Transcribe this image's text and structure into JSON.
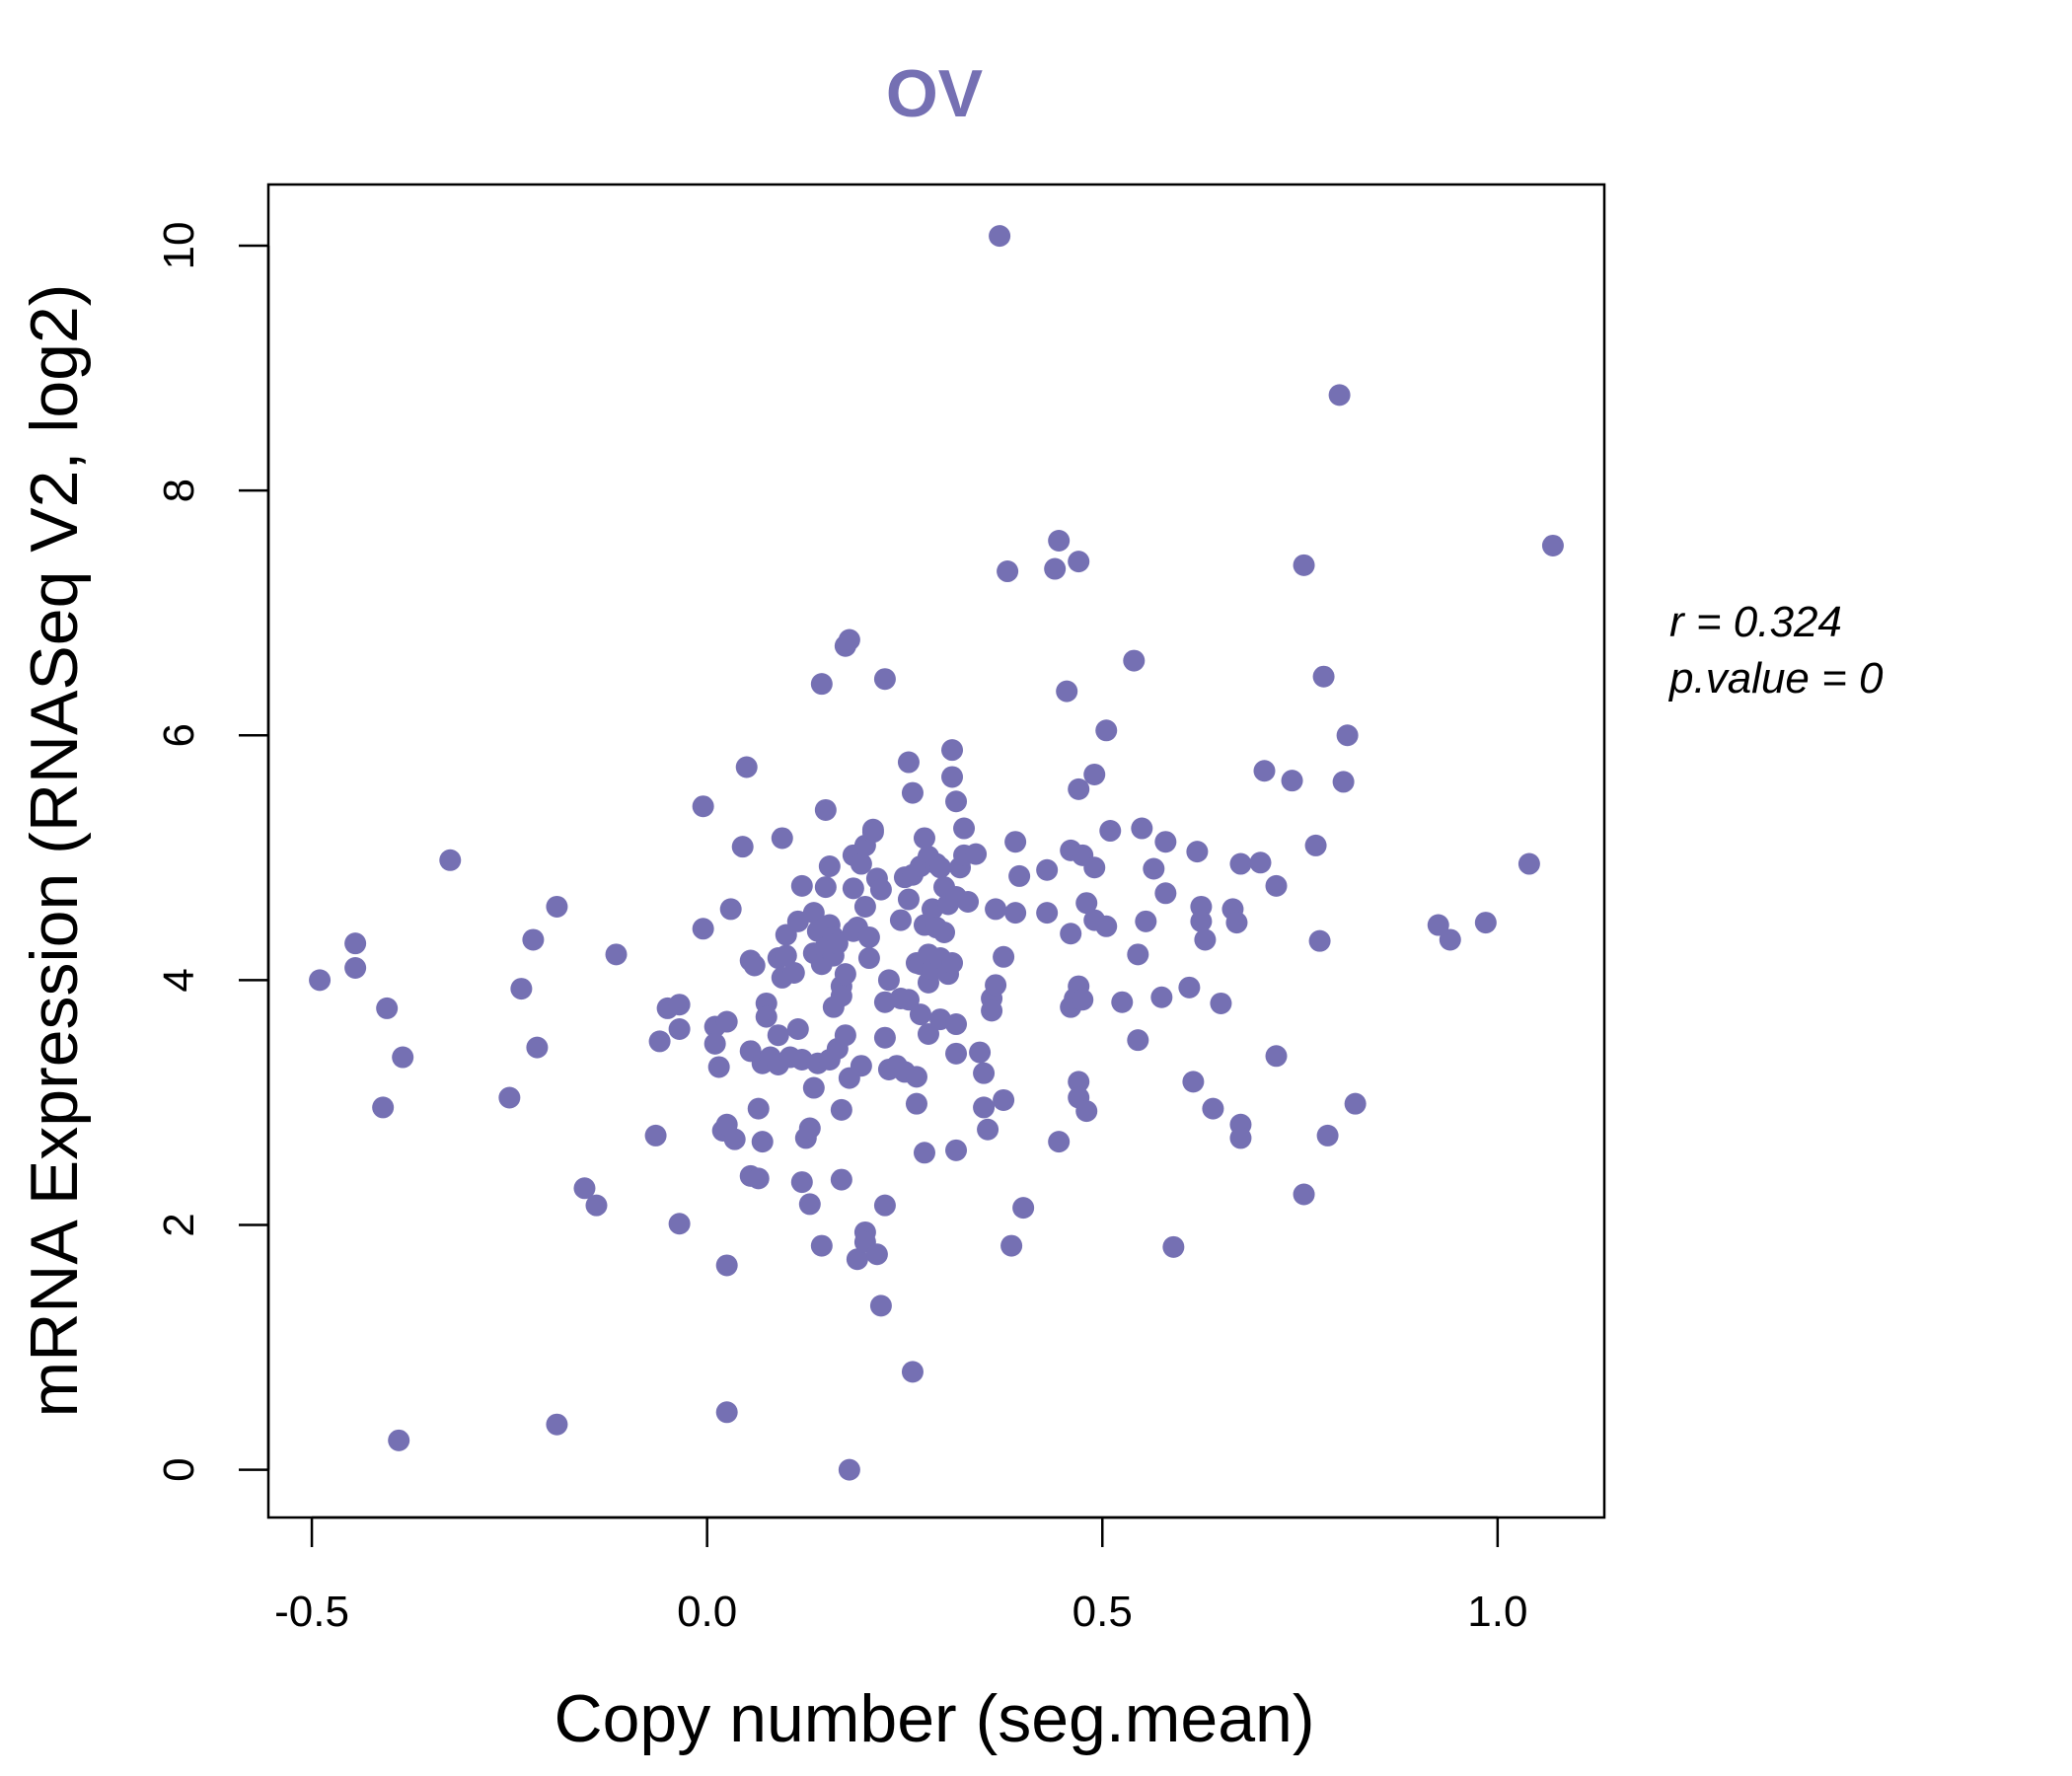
{
  "chart_data": {
    "type": "scatter",
    "title": "OV",
    "title_color": "#7570b3",
    "point_color": "#7570b3",
    "xlabel": "Copy number (seg.mean)",
    "ylabel": "mRNA Expression (RNASeq V2, log2)",
    "xlim": [
      -0.555,
      1.135
    ],
    "ylim": [
      -0.39,
      10.5
    ],
    "x_ticks": [
      -0.5,
      0.0,
      0.5,
      1.0
    ],
    "x_tick_labels": [
      "-0.5",
      "0.0",
      "0.5",
      "1.0"
    ],
    "y_ticks": [
      0,
      2,
      4,
      6,
      8,
      10
    ],
    "y_tick_labels": [
      "0",
      "2",
      "4",
      "6",
      "8",
      "10"
    ],
    "grid": false,
    "stats": {
      "r_label": "r = 0.324",
      "p_label": "p.value = 0"
    },
    "points": [
      [
        -0.49,
        4.0
      ],
      [
        -0.445,
        4.1
      ],
      [
        -0.445,
        4.3
      ],
      [
        -0.41,
        2.96
      ],
      [
        -0.405,
        3.77
      ],
      [
        -0.39,
        0.24
      ],
      [
        -0.385,
        3.37
      ],
      [
        -0.325,
        4.98
      ],
      [
        -0.25,
        3.04
      ],
      [
        -0.235,
        3.93
      ],
      [
        -0.22,
        4.33
      ],
      [
        -0.215,
        3.45
      ],
      [
        -0.19,
        0.37
      ],
      [
        -0.19,
        4.6
      ],
      [
        -0.155,
        2.3
      ],
      [
        -0.14,
        2.16
      ],
      [
        -0.115,
        4.21
      ],
      [
        -0.065,
        2.73
      ],
      [
        -0.06,
        3.5
      ],
      [
        -0.05,
        3.77
      ],
      [
        -0.035,
        3.8
      ],
      [
        -0.035,
        3.6
      ],
      [
        -0.035,
        2.01
      ],
      [
        -0.005,
        5.42
      ],
      [
        -0.005,
        4.42
      ],
      [
        0.01,
        3.62
      ],
      [
        0.01,
        3.48
      ],
      [
        0.015,
        3.29
      ],
      [
        0.02,
        2.77
      ],
      [
        0.025,
        2.82
      ],
      [
        0.025,
        3.66
      ],
      [
        0.025,
        1.67
      ],
      [
        0.025,
        0.47
      ],
      [
        0.03,
        4.58
      ],
      [
        0.035,
        2.7
      ],
      [
        0.045,
        5.09
      ],
      [
        0.05,
        5.74
      ],
      [
        0.055,
        4.16
      ],
      [
        0.055,
        3.42
      ],
      [
        0.055,
        2.4
      ],
      [
        0.06,
        4.12
      ],
      [
        0.065,
        2.38
      ],
      [
        0.065,
        2.95
      ],
      [
        0.07,
        2.68
      ],
      [
        0.07,
        3.32
      ],
      [
        0.075,
        3.81
      ],
      [
        0.075,
        3.7
      ],
      [
        0.08,
        3.37
      ],
      [
        0.09,
        4.18
      ],
      [
        0.09,
        3.55
      ],
      [
        0.09,
        3.31
      ],
      [
        0.095,
        5.16
      ],
      [
        0.095,
        4.02
      ],
      [
        0.1,
        4.37
      ],
      [
        0.1,
        4.2
      ],
      [
        0.105,
        3.37
      ],
      [
        0.11,
        4.06
      ],
      [
        0.115,
        4.48
      ],
      [
        0.115,
        3.6
      ],
      [
        0.12,
        4.77
      ],
      [
        0.12,
        2.35
      ],
      [
        0.12,
        3.35
      ],
      [
        0.125,
        2.71
      ],
      [
        0.13,
        2.79
      ],
      [
        0.13,
        2.17
      ],
      [
        0.135,
        4.55
      ],
      [
        0.135,
        4.22
      ],
      [
        0.135,
        3.12
      ],
      [
        0.14,
        4.4
      ],
      [
        0.14,
        3.32
      ],
      [
        0.145,
        6.42
      ],
      [
        0.145,
        4.13
      ],
      [
        0.145,
        1.83
      ],
      [
        0.15,
        5.39
      ],
      [
        0.15,
        4.76
      ],
      [
        0.15,
        4.27
      ],
      [
        0.155,
        4.93
      ],
      [
        0.155,
        4.45
      ],
      [
        0.155,
        3.35
      ],
      [
        0.16,
        4.35
      ],
      [
        0.16,
        4.2
      ],
      [
        0.16,
        3.78
      ],
      [
        0.165,
        4.3
      ],
      [
        0.165,
        3.44
      ],
      [
        0.17,
        3.95
      ],
      [
        0.17,
        3.87
      ],
      [
        0.17,
        2.94
      ],
      [
        0.17,
        2.37
      ],
      [
        0.175,
        6.73
      ],
      [
        0.175,
        4.05
      ],
      [
        0.175,
        3.55
      ],
      [
        0.18,
        6.78
      ],
      [
        0.18,
        3.2
      ],
      [
        0.18,
        0.0
      ],
      [
        0.185,
        5.02
      ],
      [
        0.185,
        4.75
      ],
      [
        0.185,
        4.4
      ],
      [
        0.19,
        4.43
      ],
      [
        0.19,
        1.72
      ],
      [
        0.195,
        4.95
      ],
      [
        0.195,
        3.3
      ],
      [
        0.2,
        5.1
      ],
      [
        0.2,
        4.6
      ],
      [
        0.2,
        1.94
      ],
      [
        0.2,
        1.86
      ],
      [
        0.205,
        4.35
      ],
      [
        0.205,
        4.18
      ],
      [
        0.21,
        5.21
      ],
      [
        0.21,
        5.23
      ],
      [
        0.215,
        4.83
      ],
      [
        0.215,
        1.76
      ],
      [
        0.22,
        4.74
      ],
      [
        0.22,
        1.34
      ],
      [
        0.225,
        6.46
      ],
      [
        0.225,
        3.82
      ],
      [
        0.225,
        3.53
      ],
      [
        0.225,
        2.16
      ],
      [
        0.23,
        4.0
      ],
      [
        0.23,
        3.27
      ],
      [
        0.24,
        3.3
      ],
      [
        0.245,
        4.49
      ],
      [
        0.245,
        3.85
      ],
      [
        0.25,
        3.25
      ],
      [
        0.25,
        4.84
      ],
      [
        0.255,
        5.78
      ],
      [
        0.255,
        4.66
      ],
      [
        0.255,
        3.84
      ],
      [
        0.26,
        5.53
      ],
      [
        0.26,
        4.86
      ],
      [
        0.26,
        0.8
      ],
      [
        0.265,
        4.14
      ],
      [
        0.265,
        3.21
      ],
      [
        0.265,
        2.99
      ],
      [
        0.27,
        4.93
      ],
      [
        0.27,
        4.13
      ],
      [
        0.27,
        3.72
      ],
      [
        0.275,
        5.16
      ],
      [
        0.275,
        4.45
      ],
      [
        0.275,
        2.59
      ],
      [
        0.28,
        5.01
      ],
      [
        0.28,
        4.21
      ],
      [
        0.28,
        3.98
      ],
      [
        0.28,
        3.56
      ],
      [
        0.285,
        4.58
      ],
      [
        0.285,
        4.09
      ],
      [
        0.29,
        4.95
      ],
      [
        0.29,
        4.43
      ],
      [
        0.295,
        4.92
      ],
      [
        0.295,
        4.18
      ],
      [
        0.295,
        3.68
      ],
      [
        0.3,
        4.76
      ],
      [
        0.3,
        4.39
      ],
      [
        0.305,
        4.05
      ],
      [
        0.305,
        4.62
      ],
      [
        0.31,
        5.88
      ],
      [
        0.31,
        5.66
      ],
      [
        0.31,
        4.14
      ],
      [
        0.315,
        5.46
      ],
      [
        0.315,
        4.68
      ],
      [
        0.315,
        3.64
      ],
      [
        0.315,
        3.4
      ],
      [
        0.315,
        2.61
      ],
      [
        0.32,
        4.92
      ],
      [
        0.325,
        5.24
      ],
      [
        0.325,
        5.02
      ],
      [
        0.33,
        4.64
      ],
      [
        0.34,
        5.03
      ],
      [
        0.345,
        3.41
      ],
      [
        0.35,
        3.24
      ],
      [
        0.35,
        2.96
      ],
      [
        0.355,
        2.78
      ],
      [
        0.36,
        3.85
      ],
      [
        0.36,
        3.75
      ],
      [
        0.365,
        4.58
      ],
      [
        0.365,
        3.96
      ],
      [
        0.37,
        10.08
      ],
      [
        0.375,
        4.19
      ],
      [
        0.375,
        3.02
      ],
      [
        0.38,
        7.34
      ],
      [
        0.385,
        1.83
      ],
      [
        0.39,
        5.13
      ],
      [
        0.39,
        4.55
      ],
      [
        0.395,
        4.85
      ],
      [
        0.4,
        2.14
      ],
      [
        0.43,
        4.9
      ],
      [
        0.43,
        4.55
      ],
      [
        0.44,
        7.36
      ],
      [
        0.445,
        7.59
      ],
      [
        0.445,
        2.68
      ],
      [
        0.455,
        6.36
      ],
      [
        0.46,
        5.06
      ],
      [
        0.46,
        4.38
      ],
      [
        0.46,
        3.78
      ],
      [
        0.465,
        3.85
      ],
      [
        0.47,
        7.42
      ],
      [
        0.47,
        5.56
      ],
      [
        0.47,
        3.95
      ],
      [
        0.47,
        3.17
      ],
      [
        0.47,
        3.04
      ],
      [
        0.475,
        5.02
      ],
      [
        0.475,
        3.84
      ],
      [
        0.48,
        4.63
      ],
      [
        0.48,
        2.93
      ],
      [
        0.49,
        5.68
      ],
      [
        0.49,
        4.92
      ],
      [
        0.49,
        4.49
      ],
      [
        0.505,
        6.04
      ],
      [
        0.505,
        4.44
      ],
      [
        0.51,
        5.22
      ],
      [
        0.525,
        3.82
      ],
      [
        0.54,
        6.61
      ],
      [
        0.545,
        4.21
      ],
      [
        0.545,
        3.51
      ],
      [
        0.55,
        5.24
      ],
      [
        0.555,
        4.48
      ],
      [
        0.565,
        4.91
      ],
      [
        0.575,
        3.86
      ],
      [
        0.58,
        5.13
      ],
      [
        0.58,
        4.71
      ],
      [
        0.59,
        1.82
      ],
      [
        0.61,
        3.94
      ],
      [
        0.615,
        3.17
      ],
      [
        0.62,
        5.05
      ],
      [
        0.625,
        4.6
      ],
      [
        0.625,
        4.48
      ],
      [
        0.63,
        4.33
      ],
      [
        0.64,
        2.95
      ],
      [
        0.65,
        3.81
      ],
      [
        0.665,
        4.58
      ],
      [
        0.67,
        4.47
      ],
      [
        0.675,
        4.95
      ],
      [
        0.675,
        2.82
      ],
      [
        0.675,
        2.71
      ],
      [
        0.7,
        4.96
      ],
      [
        0.705,
        5.71
      ],
      [
        0.72,
        4.77
      ],
      [
        0.72,
        3.38
      ],
      [
        0.74,
        5.63
      ],
      [
        0.755,
        7.39
      ],
      [
        0.755,
        2.25
      ],
      [
        0.77,
        5.1
      ],
      [
        0.775,
        4.32
      ],
      [
        0.78,
        6.48
      ],
      [
        0.785,
        2.73
      ],
      [
        0.8,
        8.78
      ],
      [
        0.805,
        5.62
      ],
      [
        0.81,
        6.0
      ],
      [
        0.82,
        2.99
      ],
      [
        0.925,
        4.45
      ],
      [
        0.94,
        4.33
      ],
      [
        0.985,
        4.47
      ],
      [
        1.04,
        4.95
      ],
      [
        1.07,
        7.55
      ]
    ]
  }
}
